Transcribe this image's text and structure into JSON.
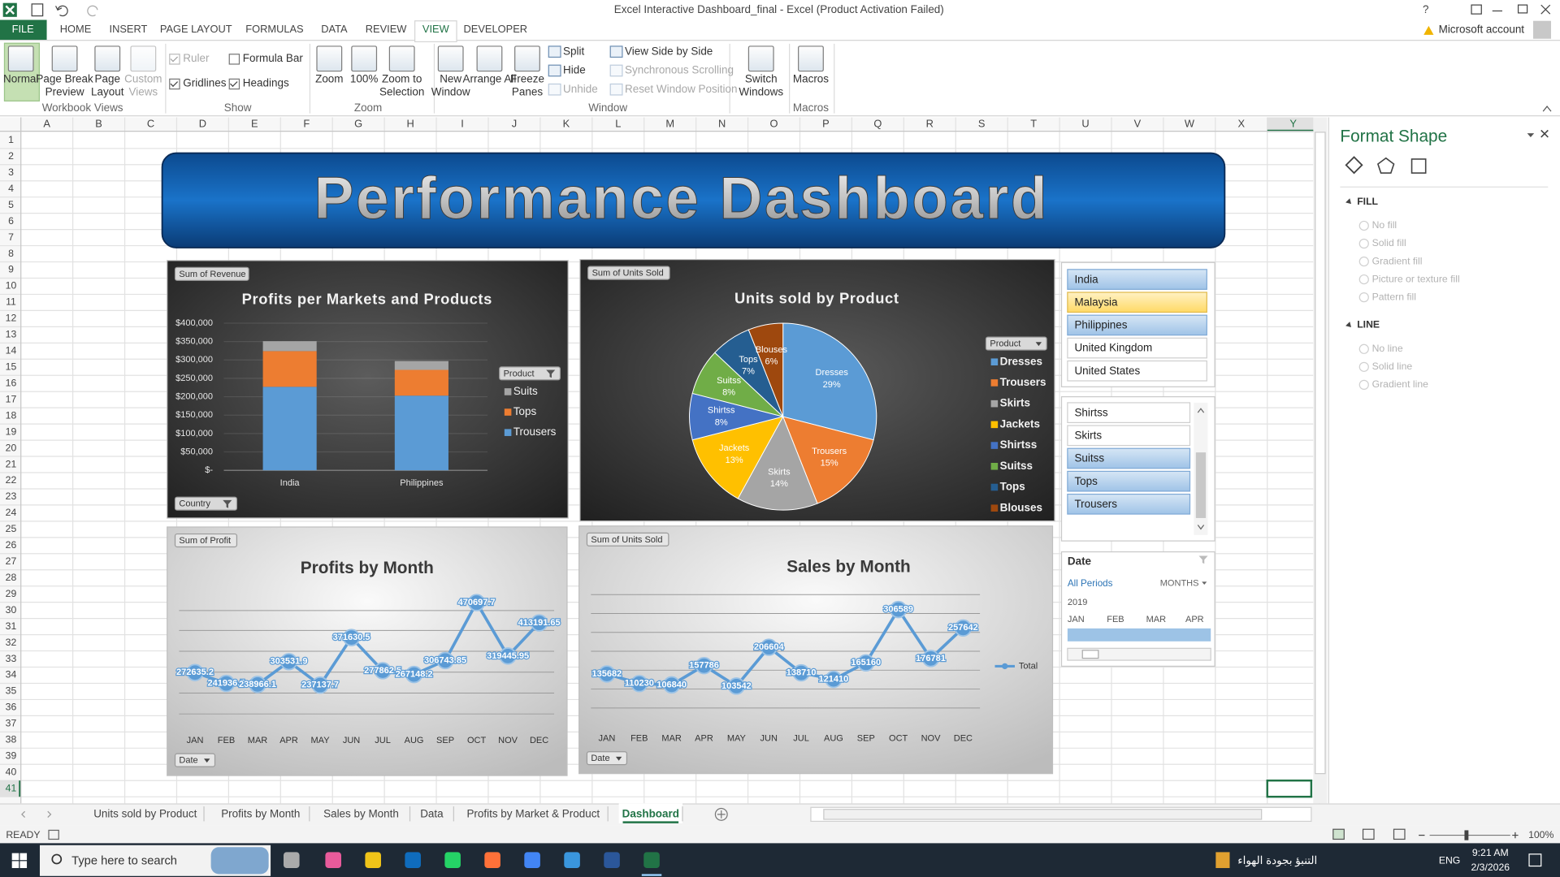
{
  "window": {
    "title": "Excel Interactive Dashboard_final - Excel (Product Activation Failed)",
    "help": "?",
    "account": "Microsoft account"
  },
  "ribbon": {
    "tabs": [
      "FILE",
      "HOME",
      "INSERT",
      "PAGE LAYOUT",
      "FORMULAS",
      "DATA",
      "REVIEW",
      "VIEW",
      "DEVELOPER"
    ],
    "active_tab": 7,
    "groups": [
      {
        "label": "Workbook Views",
        "items": [
          "Normal",
          "Page Break Preview",
          "Page Layout",
          "Custom Views"
        ]
      },
      {
        "label": "Show",
        "items": [
          "Ruler",
          "Formula Bar",
          "Gridlines",
          "Headings"
        ],
        "checked": [
          true,
          false,
          true,
          true
        ]
      },
      {
        "label": "Zoom",
        "items": [
          "Zoom",
          "100%",
          "Zoom to Selection"
        ]
      },
      {
        "label": "Window",
        "items": [
          "New Window",
          "Arrange All",
          "Freeze Panes",
          "Split",
          "Hide",
          "Unhide",
          "View Side by Side",
          "Synchronous Scrolling",
          "Reset Window Position",
          "Switch Windows"
        ]
      },
      {
        "label": "Macros",
        "items": [
          "Macros"
        ]
      }
    ]
  },
  "sheet": {
    "columns": [
      "A",
      "B",
      "C",
      "D",
      "E",
      "F",
      "G",
      "H",
      "I",
      "J",
      "K",
      "L",
      "M",
      "N",
      "O",
      "P",
      "Q",
      "R",
      "S",
      "T",
      "U",
      "V",
      "W",
      "X",
      "Y"
    ],
    "rows": [
      1,
      2,
      3,
      4,
      5,
      6,
      7,
      8,
      9,
      10,
      11,
      12,
      13,
      14,
      15,
      16,
      17,
      18,
      19,
      20,
      21,
      22,
      23,
      24,
      25,
      26,
      27,
      28,
      29,
      30,
      31,
      32,
      33,
      34,
      35,
      36,
      37,
      38,
      39,
      40,
      41
    ],
    "selected_column": 24,
    "selected_row": 40
  },
  "dashboard": {
    "title": "Performance Dashboard"
  },
  "chart_data": [
    {
      "type": "bar",
      "stacked": true,
      "field_button": "Sum of Revenue",
      "title": "Profits per Markets and Products",
      "categories": [
        "India",
        "Philippines"
      ],
      "series": [
        {
          "name": "Trousers",
          "color": "#5b9bd5",
          "values": [
            227000,
            203000
          ]
        },
        {
          "name": "Tops",
          "color": "#ed7d31",
          "values": [
            97000,
            70000
          ]
        },
        {
          "name": "Suits",
          "color": "#a5a5a5",
          "values": [
            27000,
            24000
          ]
        }
      ],
      "ylim": [
        0,
        400000
      ],
      "yticks": [
        {
          "value": 0,
          "label": "$-"
        },
        {
          "value": 50000,
          "label": "$50,000"
        },
        {
          "value": 100000,
          "label": "$100,000"
        },
        {
          "value": 150000,
          "label": "$150,000"
        },
        {
          "value": 200000,
          "label": "$200,000"
        },
        {
          "value": 250000,
          "label": "$250,000"
        },
        {
          "value": 300000,
          "label": "$300,000"
        },
        {
          "value": 350000,
          "label": "$350,000"
        },
        {
          "value": 400000,
          "label": "$400,000"
        }
      ],
      "legend_title": "Product",
      "axis_button": "Country"
    },
    {
      "type": "pie",
      "field_button": "Sum of Units Sold",
      "title": "Units sold by Product",
      "categories": [
        "Dresses",
        "Trousers",
        "Skirts",
        "Jackets",
        "Shirtss",
        "Suitss",
        "Tops",
        "Blouses"
      ],
      "values": [
        29,
        15,
        14,
        13,
        8,
        8,
        7,
        6
      ],
      "value_labels": [
        "29%",
        "15%",
        "14%",
        "13%",
        "8%",
        "8%",
        "7%",
        "6%"
      ],
      "colors": [
        "#5b9bd5",
        "#ed7d31",
        "#a5a5a5",
        "#ffc000",
        "#4472c4",
        "#70ad47",
        "#255e91",
        "#9e480e"
      ],
      "legend_title": "Product"
    },
    {
      "type": "line",
      "field_button": "Sum of Profit",
      "title": "Profits by Month",
      "categories": [
        "JAN",
        "FEB",
        "MAR",
        "APR",
        "MAY",
        "JUN",
        "JUL",
        "AUG",
        "SEP",
        "OCT",
        "NOV",
        "DEC"
      ],
      "series": [
        {
          "color": "#5b9bd5",
          "values": [
            272635.2,
            241936.5,
            238966.1,
            303531.9,
            237137.7,
            371630.5,
            277862.5,
            267148.2,
            306743.85,
            470697.7,
            319445.95,
            413191.65
          ]
        }
      ],
      "axis_button": "Date",
      "legend": false
    },
    {
      "type": "line",
      "field_button": "Sum of Units Sold",
      "title": "Sales by Month",
      "categories": [
        "JAN",
        "FEB",
        "MAR",
        "APR",
        "MAY",
        "JUN",
        "JUL",
        "AUG",
        "SEP",
        "OCT",
        "NOV",
        "DEC"
      ],
      "series": [
        {
          "name": "Total",
          "color": "#5b9bd5",
          "values": [
            135682,
            110230,
            106840,
            157786,
            103542,
            206604,
            138710,
            121410,
            165160,
            306589,
            176781,
            257642
          ]
        }
      ],
      "axis_button": "Date",
      "legend": true
    }
  ],
  "slicers": [
    {
      "items": [
        "India",
        "Malaysia",
        "Philippines",
        "United Kingdom",
        "United States"
      ],
      "selected": [
        true,
        false,
        true,
        false,
        false
      ],
      "hovered": 1
    },
    {
      "items": [
        "Shirtss",
        "Skirts",
        "Suitss",
        "Tops",
        "Trousers"
      ],
      "selected": [
        false,
        false,
        true,
        true,
        true
      ]
    }
  ],
  "timeline": {
    "title": "Date",
    "period": "All Periods",
    "level": "MONTHS",
    "year": "2019",
    "months": [
      "JAN",
      "FEB",
      "MAR",
      "APR"
    ]
  },
  "format_pane": {
    "title": "Format Shape",
    "sections": [
      {
        "label": "FILL",
        "options": [
          "No fill",
          "Solid fill",
          "Gradient fill",
          "Picture or texture fill",
          "Pattern fill"
        ]
      },
      {
        "label": "LINE",
        "options": [
          "No line",
          "Solid line",
          "Gradient line"
        ]
      }
    ]
  },
  "sheet_tabs": {
    "tabs": [
      "Units sold by Product",
      "Profits by Month",
      "Sales by Month",
      "Data",
      "Profits by Market & Product",
      "Dashboard"
    ],
    "active": 5
  },
  "status_bar": {
    "state": "READY",
    "zoom": "100%"
  },
  "taskbar": {
    "search": "Type here to search",
    "weather": "التنبؤ بجودة الهواء",
    "language": "ENG",
    "time": "9:21 AM",
    "date": "2/3/2026"
  }
}
